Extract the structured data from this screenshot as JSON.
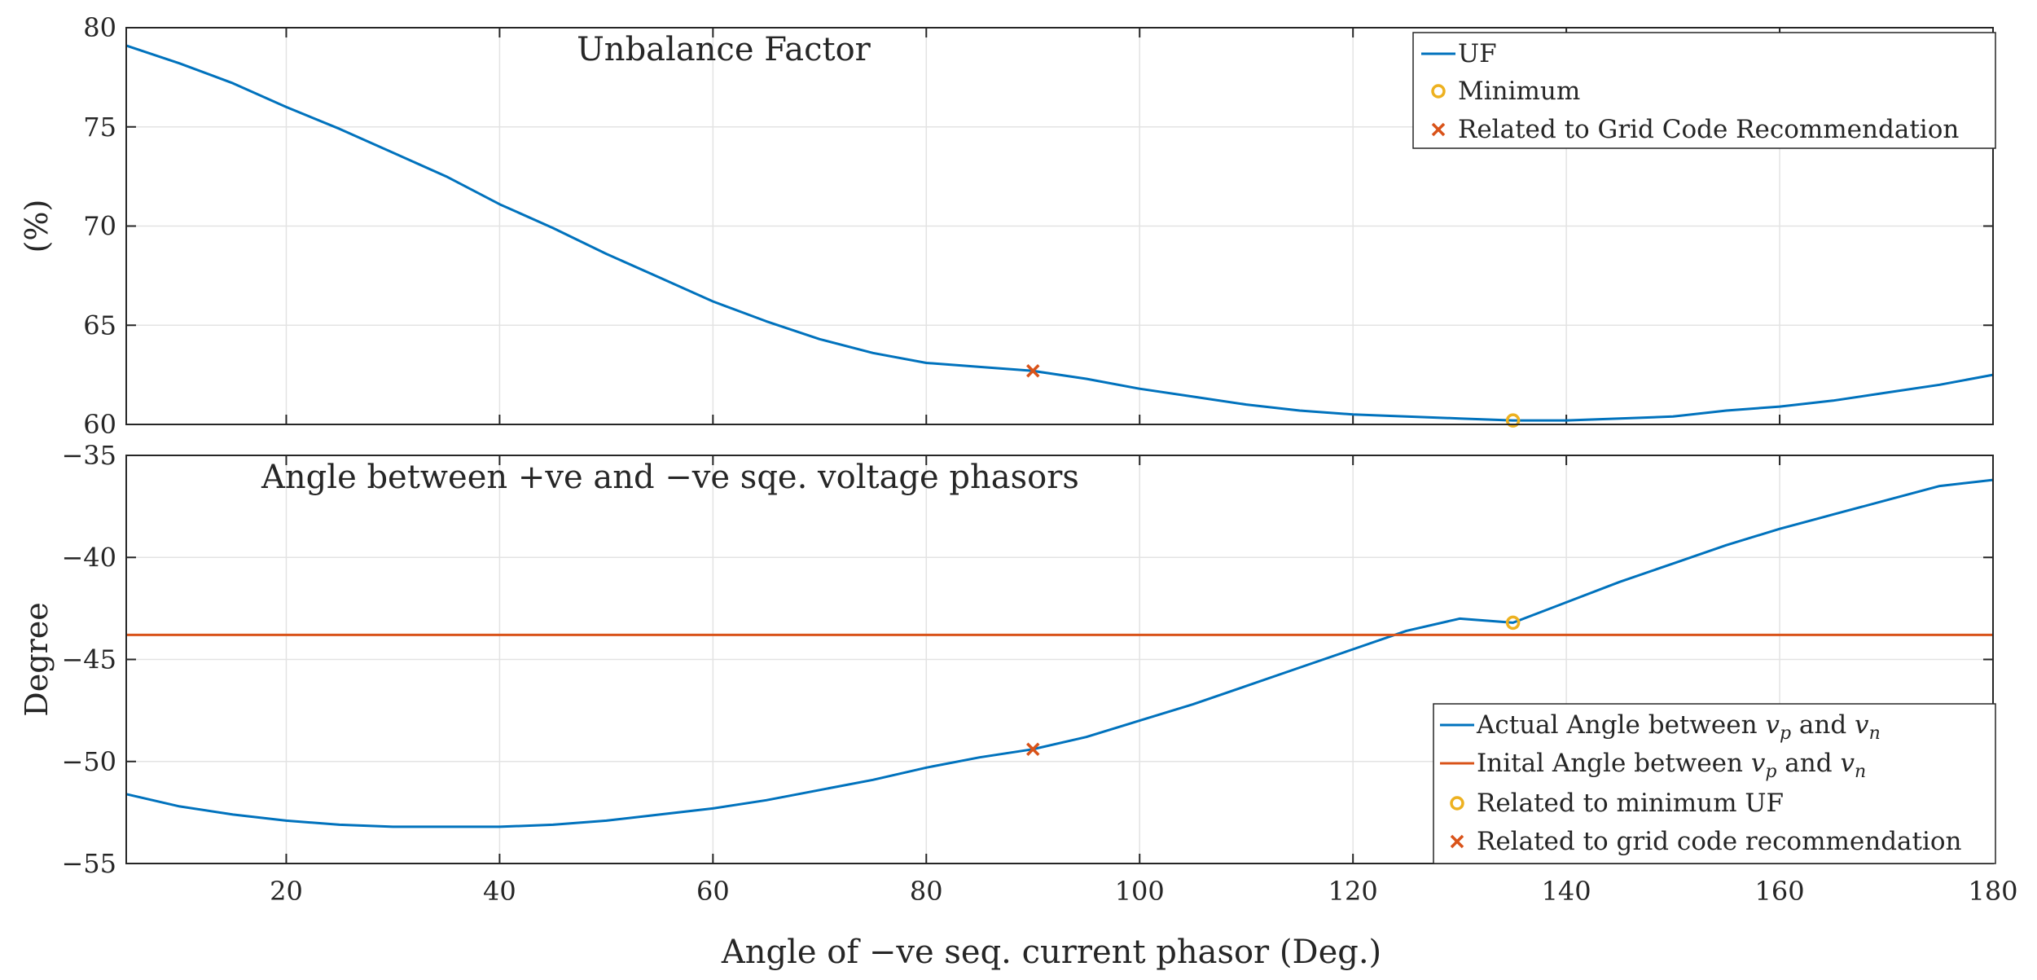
{
  "chart_data": [
    {
      "type": "line",
      "title": "Unbalance Factor",
      "xlabel": "",
      "ylabel": "(%)",
      "xlim": [
        5,
        180
      ],
      "ylim": [
        60,
        80
      ],
      "xticks": [
        20,
        40,
        60,
        80,
        100,
        120,
        140,
        160,
        180
      ],
      "yticks": [
        60,
        65,
        70,
        75,
        80
      ],
      "series": [
        {
          "name": "UF",
          "color": "#0072BD",
          "x": [
            5,
            10,
            15,
            20,
            25,
            30,
            35,
            40,
            45,
            50,
            55,
            60,
            65,
            70,
            75,
            80,
            85,
            90,
            95,
            100,
            105,
            110,
            115,
            120,
            125,
            130,
            135,
            140,
            145,
            150,
            155,
            160,
            165,
            170,
            175,
            180
          ],
          "y": [
            79.1,
            78.2,
            77.2,
            76.0,
            74.9,
            73.7,
            72.5,
            71.1,
            69.9,
            68.6,
            67.4,
            66.2,
            65.2,
            64.3,
            63.6,
            63.1,
            62.9,
            62.7,
            62.3,
            61.8,
            61.4,
            61.0,
            60.7,
            60.5,
            60.4,
            60.3,
            60.2,
            60.2,
            60.3,
            60.4,
            60.7,
            60.9,
            61.2,
            61.6,
            62.0,
            62.5
          ]
        }
      ],
      "markers": [
        {
          "name": "Minimum",
          "type": "circle",
          "color": "#EDB120",
          "x": 135,
          "y": 60.2
        },
        {
          "name": "Related to Grid Code Recommendation",
          "type": "x",
          "color": "#D95319",
          "x": 90,
          "y": 62.7
        }
      ],
      "legend": {
        "position": "top-right",
        "entries": [
          "UF",
          "Minimum",
          "Related to Grid Code Recommendation"
        ]
      }
    },
    {
      "type": "line",
      "title": "Angle between +ve and −ve sqe. voltage phasors",
      "xlabel": "Angle of −ve seq. current phasor (Deg.)",
      "ylabel": "Degree",
      "xlim": [
        5,
        180
      ],
      "ylim": [
        -55,
        -35
      ],
      "xticks": [
        20,
        40,
        60,
        80,
        100,
        120,
        140,
        160,
        180
      ],
      "yticks": [
        -55,
        -50,
        -45,
        -40,
        -35
      ],
      "series": [
        {
          "name": "Actual Angle between v_p and v_n",
          "color": "#0072BD",
          "x": [
            5,
            10,
            15,
            20,
            25,
            30,
            35,
            40,
            45,
            50,
            55,
            60,
            65,
            70,
            75,
            80,
            85,
            90,
            95,
            100,
            105,
            110,
            115,
            120,
            125,
            130,
            135,
            140,
            145,
            150,
            155,
            160,
            165,
            170,
            175,
            180
          ],
          "y": [
            -51.6,
            -52.2,
            -52.6,
            -52.9,
            -53.1,
            -53.2,
            -53.2,
            -53.2,
            -53.1,
            -52.9,
            -52.6,
            -52.3,
            -51.9,
            -51.4,
            -50.9,
            -50.3,
            -49.8,
            -49.4,
            -48.8,
            -48.0,
            -47.2,
            -46.3,
            -45.4,
            -44.5,
            -43.6,
            -43.0,
            -43.2,
            -42.2,
            -41.2,
            -40.3,
            -39.4,
            -38.6,
            -37.9,
            -37.2,
            -36.5,
            -36.2
          ]
        },
        {
          "name": "Inital Angle between v_p and v_n",
          "color": "#D95319",
          "x": [
            5,
            180
          ],
          "y": [
            -43.8,
            -43.8
          ]
        }
      ],
      "markers": [
        {
          "name": "Related to minimum UF",
          "type": "circle",
          "color": "#EDB120",
          "x": 135,
          "y": -43.2
        },
        {
          "name": "Related to grid code recommendation",
          "type": "x",
          "color": "#D95319",
          "x": 90,
          "y": -49.4
        }
      ],
      "legend": {
        "position": "bottom-right",
        "entries": [
          "Actual Angle between v_p and v_n",
          "Inital Angle between v_p and v_n",
          "Related to minimum UF",
          "Related to grid code recommendation"
        ]
      }
    }
  ],
  "legend_text": {
    "top": {
      "uf": "UF",
      "minimum": "Minimum",
      "grid": "Related to Grid Code Recommendation"
    },
    "bottom": {
      "actual_prefix": "Actual Angle between ",
      "initial_prefix": "Inital Angle between ",
      "v": "v",
      "p": "p",
      "n": "n",
      "and": " and ",
      "min_uf": "Related to minimum UF",
      "grid": "Related to grid code recommendation"
    }
  }
}
